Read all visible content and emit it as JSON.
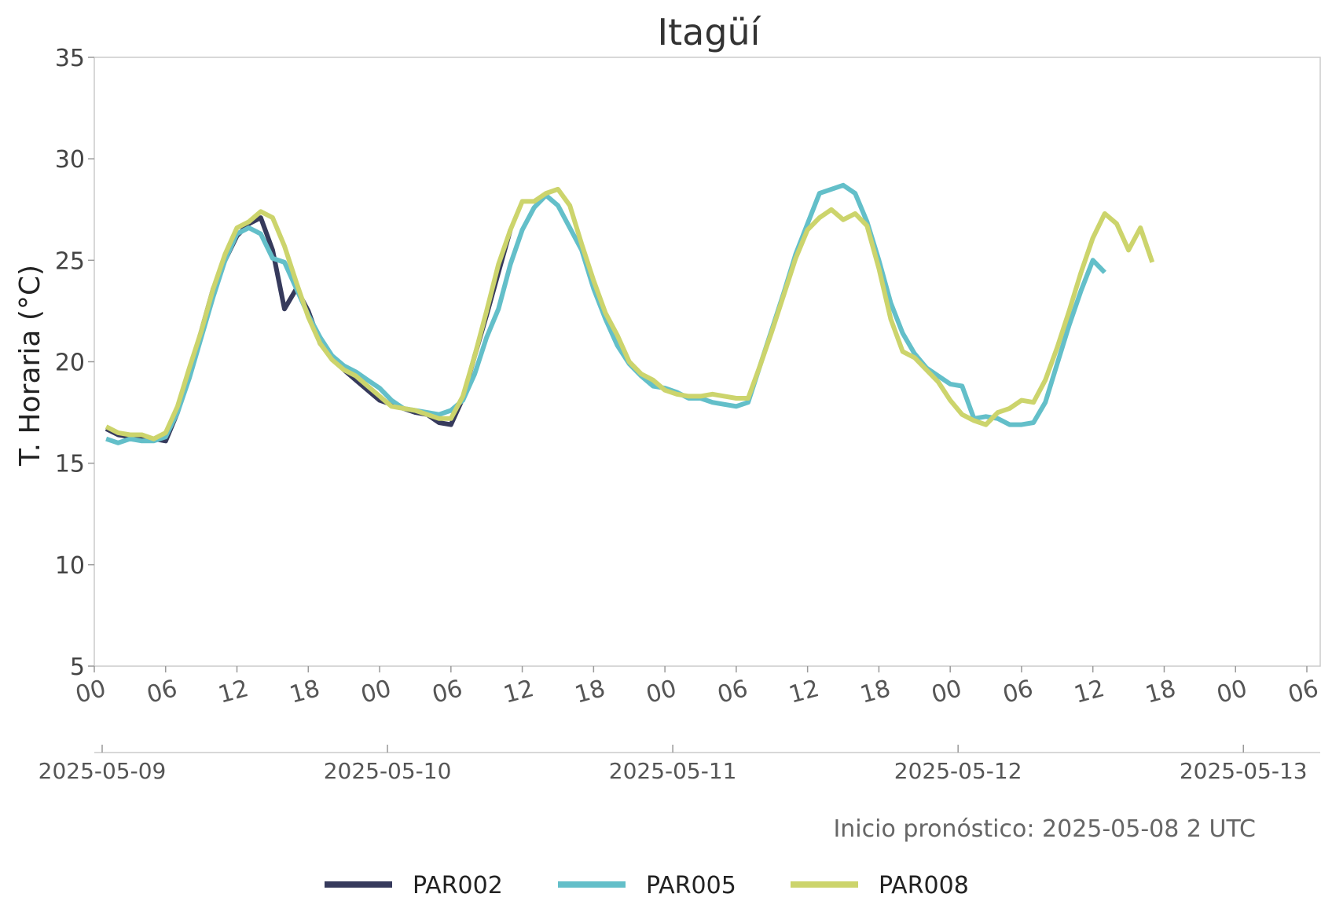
{
  "chart_data": {
    "type": "line",
    "title": "Itagüí",
    "ylabel": "T. Horaria (°C)",
    "ylim": [
      5,
      35
    ],
    "yticks": [
      "5",
      "10",
      "15",
      "20",
      "25",
      "30",
      "35"
    ],
    "x_unit": "hour since 2025-05-09 00 UTC",
    "xlim": [
      0,
      102
    ],
    "hour_ticks": [
      {
        "x": 0,
        "label": "00"
      },
      {
        "x": 6,
        "label": "06"
      },
      {
        "x": 12,
        "label": "12"
      },
      {
        "x": 18,
        "label": "18"
      },
      {
        "x": 24,
        "label": "00"
      },
      {
        "x": 30,
        "label": "06"
      },
      {
        "x": 36,
        "label": "12"
      },
      {
        "x": 42,
        "label": "18"
      },
      {
        "x": 48,
        "label": "00"
      },
      {
        "x": 54,
        "label": "06"
      },
      {
        "x": 60,
        "label": "12"
      },
      {
        "x": 66,
        "label": "18"
      },
      {
        "x": 72,
        "label": "00"
      },
      {
        "x": 78,
        "label": "06"
      },
      {
        "x": 84,
        "label": "12"
      },
      {
        "x": 90,
        "label": "18"
      },
      {
        "x": 96,
        "label": "00"
      },
      {
        "x": 102,
        "label": "06"
      }
    ],
    "date_ticks": [
      {
        "x": 0,
        "label": "2025-05-09"
      },
      {
        "x": 24,
        "label": "2025-05-10"
      },
      {
        "x": 48,
        "label": "2025-05-11"
      },
      {
        "x": 72,
        "label": "2025-05-12"
      },
      {
        "x": 96,
        "label": "2025-05-13"
      }
    ],
    "annotation": "Inicio pronóstico: 2025-05-08 2 UTC",
    "legend_position": "bottom-center",
    "grid": false,
    "series": [
      {
        "name": "PAR002",
        "color": "#363a5c",
        "points": [
          [
            1,
            16.7
          ],
          [
            2,
            16.4
          ],
          [
            3,
            16.3
          ],
          [
            4,
            16.3
          ],
          [
            5,
            16.2
          ],
          [
            6,
            16.1
          ],
          [
            7,
            17.5
          ],
          [
            8,
            19.5
          ],
          [
            9,
            21.5
          ],
          [
            10,
            23.6
          ],
          [
            11,
            25.0
          ],
          [
            12,
            26.2
          ],
          [
            13,
            26.8
          ],
          [
            14,
            27.1
          ],
          [
            15,
            25.5
          ],
          [
            16,
            22.6
          ],
          [
            17,
            23.6
          ],
          [
            18,
            22.5
          ],
          [
            19,
            20.9
          ],
          [
            20,
            20.2
          ],
          [
            21,
            19.6
          ],
          [
            22,
            19.1
          ],
          [
            23,
            18.6
          ],
          [
            24,
            18.1
          ],
          [
            25,
            17.9
          ],
          [
            26,
            17.7
          ],
          [
            27,
            17.5
          ],
          [
            28,
            17.4
          ],
          [
            29,
            17.0
          ],
          [
            30,
            16.9
          ],
          [
            31,
            18.2
          ],
          [
            32,
            20.3
          ],
          [
            33,
            22.3
          ],
          [
            34,
            24.4
          ],
          [
            35,
            26.5
          ]
        ]
      },
      {
        "name": "PAR005",
        "color": "#63bfc9",
        "points": [
          [
            1,
            16.2
          ],
          [
            2,
            16.0
          ],
          [
            3,
            16.2
          ],
          [
            4,
            16.1
          ],
          [
            5,
            16.1
          ],
          [
            6,
            16.3
          ],
          [
            7,
            17.5
          ],
          [
            8,
            19.2
          ],
          [
            9,
            21.2
          ],
          [
            10,
            23.2
          ],
          [
            11,
            25.0
          ],
          [
            12,
            26.3
          ],
          [
            13,
            26.6
          ],
          [
            14,
            26.3
          ],
          [
            15,
            25.1
          ],
          [
            16,
            24.9
          ],
          [
            17,
            23.6
          ],
          [
            18,
            22.3
          ],
          [
            19,
            21.2
          ],
          [
            20,
            20.3
          ],
          [
            21,
            19.8
          ],
          [
            22,
            19.5
          ],
          [
            23,
            19.1
          ],
          [
            24,
            18.7
          ],
          [
            25,
            18.1
          ],
          [
            26,
            17.7
          ],
          [
            27,
            17.6
          ],
          [
            28,
            17.5
          ],
          [
            29,
            17.4
          ],
          [
            30,
            17.6
          ],
          [
            31,
            18.1
          ],
          [
            32,
            19.4
          ],
          [
            33,
            21.2
          ],
          [
            34,
            22.6
          ],
          [
            35,
            24.8
          ],
          [
            36,
            26.5
          ],
          [
            37,
            27.6
          ],
          [
            38,
            28.2
          ],
          [
            39,
            27.7
          ],
          [
            40,
            26.6
          ],
          [
            41,
            25.5
          ],
          [
            42,
            23.6
          ],
          [
            43,
            22.1
          ],
          [
            44,
            20.8
          ],
          [
            45,
            19.9
          ],
          [
            46,
            19.3
          ],
          [
            47,
            18.8
          ],
          [
            48,
            18.7
          ],
          [
            49,
            18.5
          ],
          [
            50,
            18.2
          ],
          [
            51,
            18.2
          ],
          [
            52,
            18.0
          ],
          [
            53,
            17.9
          ],
          [
            54,
            17.8
          ],
          [
            55,
            18.0
          ],
          [
            56,
            19.8
          ],
          [
            57,
            21.6
          ],
          [
            58,
            23.4
          ],
          [
            59,
            25.3
          ],
          [
            60,
            26.8
          ],
          [
            61,
            28.3
          ],
          [
            62,
            28.5
          ],
          [
            63,
            28.7
          ],
          [
            64,
            28.3
          ],
          [
            65,
            26.9
          ],
          [
            66,
            25.0
          ],
          [
            67,
            22.9
          ],
          [
            68,
            21.4
          ],
          [
            69,
            20.4
          ],
          [
            70,
            19.7
          ],
          [
            71,
            19.3
          ],
          [
            72,
            18.9
          ],
          [
            73,
            18.8
          ],
          [
            74,
            17.2
          ],
          [
            75,
            17.3
          ],
          [
            76,
            17.2
          ],
          [
            77,
            16.9
          ],
          [
            78,
            16.9
          ],
          [
            79,
            17.0
          ],
          [
            80,
            18.0
          ],
          [
            81,
            19.9
          ],
          [
            82,
            21.8
          ],
          [
            83,
            23.5
          ],
          [
            84,
            25.0
          ],
          [
            85,
            24.4
          ]
        ]
      },
      {
        "name": "PAR008",
        "color": "#ccd46c",
        "points": [
          [
            1,
            16.8
          ],
          [
            2,
            16.5
          ],
          [
            3,
            16.4
          ],
          [
            4,
            16.4
          ],
          [
            5,
            16.2
          ],
          [
            6,
            16.5
          ],
          [
            7,
            17.8
          ],
          [
            8,
            19.7
          ],
          [
            9,
            21.5
          ],
          [
            10,
            23.6
          ],
          [
            11,
            25.3
          ],
          [
            12,
            26.6
          ],
          [
            13,
            26.9
          ],
          [
            14,
            27.4
          ],
          [
            15,
            27.1
          ],
          [
            16,
            25.7
          ],
          [
            17,
            23.9
          ],
          [
            18,
            22.2
          ],
          [
            19,
            20.9
          ],
          [
            20,
            20.1
          ],
          [
            21,
            19.6
          ],
          [
            22,
            19.3
          ],
          [
            23,
            18.8
          ],
          [
            24,
            18.3
          ],
          [
            25,
            17.8
          ],
          [
            26,
            17.7
          ],
          [
            27,
            17.6
          ],
          [
            28,
            17.4
          ],
          [
            29,
            17.2
          ],
          [
            30,
            17.2
          ],
          [
            31,
            18.3
          ],
          [
            32,
            20.3
          ],
          [
            33,
            22.5
          ],
          [
            34,
            24.8
          ],
          [
            35,
            26.5
          ],
          [
            36,
            27.9
          ],
          [
            37,
            27.9
          ],
          [
            38,
            28.3
          ],
          [
            39,
            28.5
          ],
          [
            40,
            27.7
          ],
          [
            41,
            25.8
          ],
          [
            42,
            24.0
          ],
          [
            43,
            22.4
          ],
          [
            44,
            21.3
          ],
          [
            45,
            20.0
          ],
          [
            46,
            19.4
          ],
          [
            47,
            19.1
          ],
          [
            48,
            18.6
          ],
          [
            49,
            18.4
          ],
          [
            50,
            18.3
          ],
          [
            51,
            18.3
          ],
          [
            52,
            18.4
          ],
          [
            53,
            18.3
          ],
          [
            54,
            18.2
          ],
          [
            55,
            18.2
          ],
          [
            56,
            19.8
          ],
          [
            57,
            21.5
          ],
          [
            58,
            23.3
          ],
          [
            59,
            25.1
          ],
          [
            60,
            26.5
          ],
          [
            61,
            27.1
          ],
          [
            62,
            27.5
          ],
          [
            63,
            27.0
          ],
          [
            64,
            27.3
          ],
          [
            65,
            26.7
          ],
          [
            66,
            24.6
          ],
          [
            67,
            22.1
          ],
          [
            68,
            20.5
          ],
          [
            69,
            20.2
          ],
          [
            70,
            19.6
          ],
          [
            71,
            19.0
          ],
          [
            72,
            18.1
          ],
          [
            73,
            17.4
          ],
          [
            74,
            17.1
          ],
          [
            75,
            16.9
          ],
          [
            76,
            17.5
          ],
          [
            77,
            17.7
          ],
          [
            78,
            18.1
          ],
          [
            79,
            18.0
          ],
          [
            80,
            19.1
          ],
          [
            81,
            20.7
          ],
          [
            82,
            22.5
          ],
          [
            83,
            24.4
          ],
          [
            84,
            26.1
          ],
          [
            85,
            27.3
          ],
          [
            86,
            26.8
          ],
          [
            87,
            25.5
          ],
          [
            88,
            26.6
          ],
          [
            89,
            24.9
          ]
        ]
      }
    ]
  }
}
